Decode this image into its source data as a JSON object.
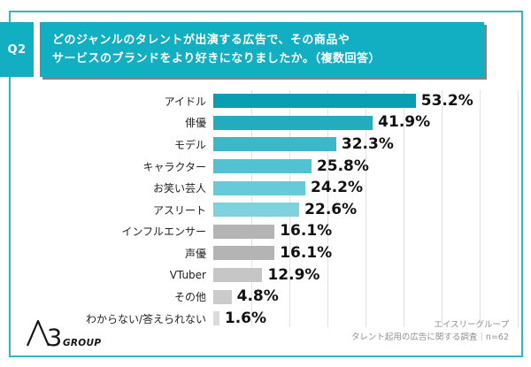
{
  "header": {
    "q_label": "Q2",
    "question_line1": "どのジャンルのタレントが出演する広告で、その商品や",
    "question_line2": "サービスのブランドをより好きになりましたか。（複数回答）"
  },
  "chart_data": {
    "type": "bar",
    "orientation": "horizontal",
    "title": "どのジャンルのタレントが出演する広告で、その商品やサービスのブランドをより好きになりましたか。（複数回答）",
    "categories": [
      "アイドル",
      "俳優",
      "モデル",
      "キャラクター",
      "お笑い芸人",
      "アスリート",
      "インフルエンサー",
      "声優",
      "VTuber",
      "その他",
      "わからない/答えられない"
    ],
    "values": [
      53.2,
      41.9,
      32.3,
      25.8,
      24.2,
      22.6,
      16.1,
      16.1,
      12.9,
      4.8,
      1.6
    ],
    "value_suffix": "%",
    "bar_colors": [
      "#0B9EB3",
      "#25ABBF",
      "#3DB7CA",
      "#52C1D2",
      "#68CAD8",
      "#7DD2DE",
      "#B4B4B4",
      "#B4B4B4",
      "#C6C6C6",
      "#CBCBCB",
      "#DBDBDB"
    ],
    "xlim": [
      0,
      80
    ],
    "gridline_step_pct": 10,
    "grid": true,
    "legend": false
  },
  "footer": {
    "logo": {
      "number": "3",
      "group": "GROUP",
      "full_name": "A3GROUP"
    },
    "credit_line1": "エイスリーグループ",
    "credit_line2": "タレント起用の広告に関する調査｜n=62"
  },
  "colors": {
    "accent_teal": "#12AEC2",
    "card_border_teal": "#35B4C5",
    "gridline": "#E2E2E2",
    "value_text": "#111111",
    "footer_text": "#8F8F8F"
  }
}
